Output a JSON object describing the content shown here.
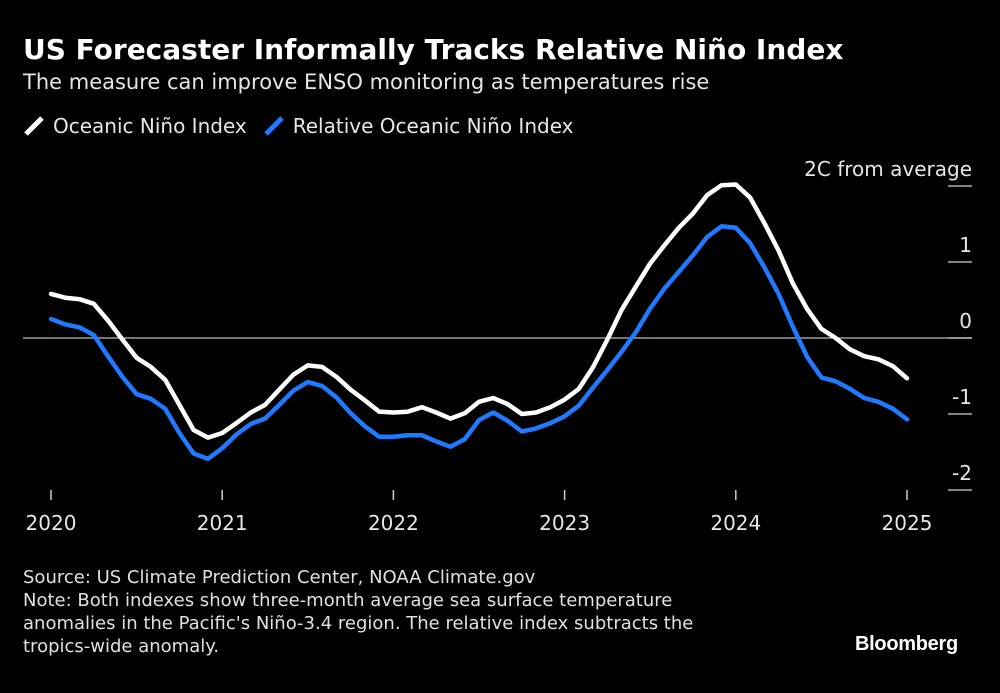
{
  "header": {
    "title": "US Forecaster Informally Tracks Relative Niño Index",
    "subtitle": "The measure can improve ENSO monitoring as temperatures rise"
  },
  "legend": [
    {
      "label": "Oceanic Niño Index",
      "color": "#ffffff"
    },
    {
      "label": "Relative Oceanic Niño Index",
      "color": "#1f7aff"
    }
  ],
  "footer": {
    "source": "Source: US Climate Prediction Center, NOAA Climate.gov",
    "note_line1": "Note: Both indexes show three-month average sea surface temperature",
    "note_line2": "anomalies in the Pacific's Niño-3.4 region. The relative index subtracts the",
    "note_line3": "tropics-wide anomaly.",
    "brand": "Bloomberg"
  },
  "chart_data": {
    "type": "line",
    "title": "US Forecaster Informally Tracks Relative Niño Index",
    "xlabel": "",
    "ylabel": "2C from average",
    "xlim": [
      2020,
      2025
    ],
    "ylim": [
      -2,
      2
    ],
    "grid": false,
    "zero_line": true,
    "x_ticks": [
      2020,
      2021,
      2022,
      2023,
      2024,
      2025
    ],
    "x_tick_labels": [
      "2020",
      "2021",
      "2022",
      "2023",
      "2024",
      "2025"
    ],
    "y_ticks": [
      2,
      1,
      0,
      -1,
      -2
    ],
    "y_tick_labels": [
      "2C from average",
      "1",
      "0",
      "-1",
      "-2"
    ],
    "legend_position": "top-left",
    "x": [
      2020.0,
      2020.083,
      2020.167,
      2020.25,
      2020.333,
      2020.417,
      2020.5,
      2020.583,
      2020.667,
      2020.75,
      2020.833,
      2020.917,
      2021.0,
      2021.083,
      2021.167,
      2021.25,
      2021.333,
      2021.417,
      2021.5,
      2021.583,
      2021.667,
      2021.75,
      2021.833,
      2021.917,
      2022.0,
      2022.083,
      2022.167,
      2022.25,
      2022.333,
      2022.417,
      2022.5,
      2022.583,
      2022.667,
      2022.75,
      2022.833,
      2022.917,
      2023.0,
      2023.083,
      2023.167,
      2023.25,
      2023.333,
      2023.417,
      2023.5,
      2023.583,
      2023.667,
      2023.75,
      2023.833,
      2023.917,
      2024.0,
      2024.083,
      2024.167,
      2024.25,
      2024.333,
      2024.417,
      2024.5,
      2024.583,
      2024.667,
      2024.75,
      2024.833,
      2024.917,
      2025.0
    ],
    "series": [
      {
        "name": "Oceanic Niño Index",
        "color": "#ffffff",
        "values": [
          0.58,
          0.53,
          0.51,
          0.45,
          0.23,
          -0.02,
          -0.26,
          -0.38,
          -0.55,
          -0.88,
          -1.21,
          -1.31,
          -1.25,
          -1.12,
          -0.98,
          -0.88,
          -0.68,
          -0.48,
          -0.36,
          -0.38,
          -0.51,
          -0.68,
          -0.82,
          -0.97,
          -0.98,
          -0.97,
          -0.91,
          -0.98,
          -1.06,
          -0.99,
          -0.84,
          -0.79,
          -0.87,
          -1.0,
          -0.98,
          -0.91,
          -0.81,
          -0.67,
          -0.38,
          -0.02,
          0.37,
          0.68,
          0.98,
          1.22,
          1.45,
          1.64,
          1.88,
          2.01,
          2.02,
          1.85,
          1.51,
          1.15,
          0.72,
          0.38,
          0.12,
          0.0,
          -0.15,
          -0.24,
          -0.28,
          -0.37,
          -0.53
        ]
      },
      {
        "name": "Relative Oceanic Niño Index",
        "color": "#1f7aff",
        "values": [
          0.25,
          0.18,
          0.14,
          0.04,
          -0.24,
          -0.51,
          -0.74,
          -0.8,
          -0.93,
          -1.25,
          -1.52,
          -1.59,
          -1.45,
          -1.27,
          -1.13,
          -1.06,
          -0.88,
          -0.69,
          -0.58,
          -0.63,
          -0.78,
          -0.99,
          -1.16,
          -1.3,
          -1.3,
          -1.28,
          -1.28,
          -1.36,
          -1.43,
          -1.33,
          -1.08,
          -0.98,
          -1.09,
          -1.23,
          -1.19,
          -1.12,
          -1.03,
          -0.89,
          -0.65,
          -0.42,
          -0.18,
          0.08,
          0.39,
          0.65,
          0.87,
          1.09,
          1.33,
          1.47,
          1.45,
          1.25,
          0.93,
          0.58,
          0.15,
          -0.25,
          -0.52,
          -0.57,
          -0.67,
          -0.79,
          -0.84,
          -0.93,
          -1.07
        ]
      }
    ]
  }
}
